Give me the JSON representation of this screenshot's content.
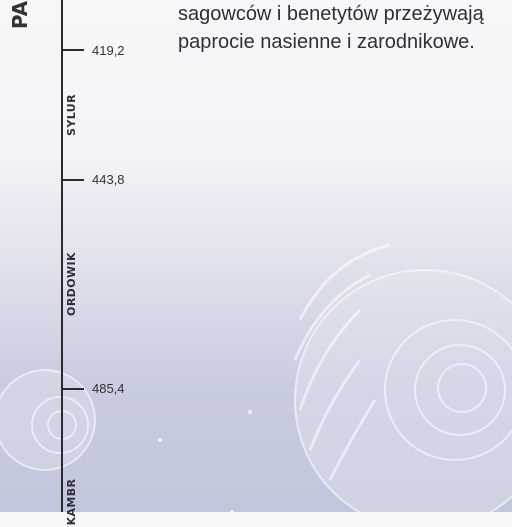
{
  "era_label": "PA",
  "periods": [
    {
      "name": "SYLUR"
    },
    {
      "name": "ORDOWIK"
    },
    {
      "name": "KAMBR"
    }
  ],
  "boundaries": [
    {
      "label": "419,2"
    },
    {
      "label": "443,8"
    },
    {
      "label": "485,4"
    }
  ],
  "description": {
    "line1": "sagowców i benetytów przeżywają",
    "line2": "paprocie nasienne i zarodnikowe."
  }
}
